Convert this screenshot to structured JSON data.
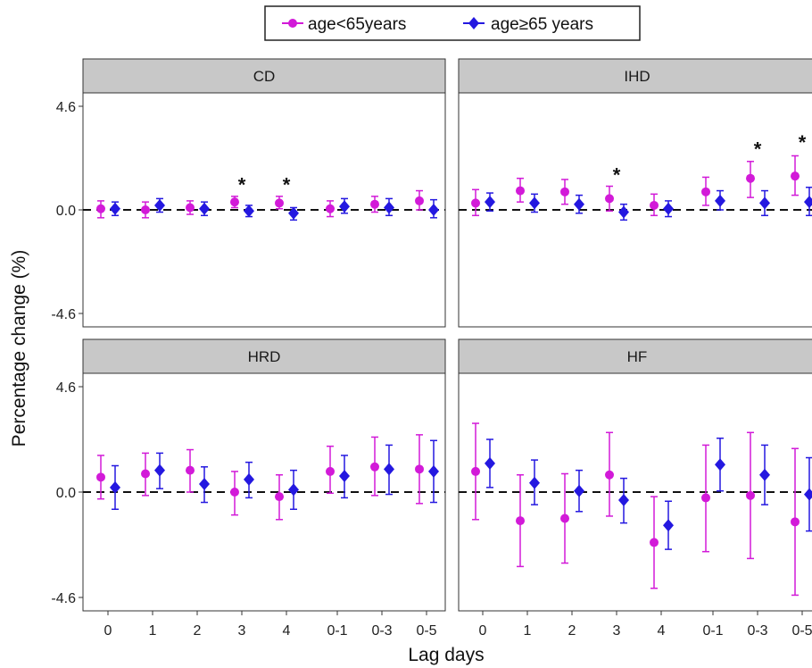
{
  "chart_data": {
    "type": "scatter",
    "xlabel": "Lag days",
    "ylabel": "Percentage change (%)",
    "categories": [
      "0",
      "1",
      "2",
      "3",
      "4",
      "0-1",
      "0-3",
      "0-5"
    ],
    "y_ticks": [
      "4.6",
      "0.0",
      "-4.6"
    ],
    "ylim": [
      -4.6,
      4.6
    ],
    "reference_line": 0,
    "legend": {
      "placement": "top",
      "entries": [
        {
          "name": "age<65years",
          "marker": "circle",
          "color": "#d21ad8"
        },
        {
          "name": "age≥65 years",
          "marker": "diamond",
          "color": "#2418e0"
        }
      ]
    },
    "panels": [
      {
        "title": "CD",
        "series": [
          {
            "name": "age<65years",
            "values": [
              0.05,
              0.0,
              0.1,
              0.35,
              0.3,
              0.05,
              0.25,
              0.4
            ],
            "lower": [
              -0.35,
              -0.35,
              -0.2,
              0.1,
              0.05,
              -0.3,
              -0.1,
              0.0
            ],
            "upper": [
              0.4,
              0.35,
              0.4,
              0.6,
              0.6,
              0.4,
              0.6,
              0.85
            ]
          },
          {
            "name": "age≥65 years",
            "values": [
              0.05,
              0.2,
              0.05,
              -0.05,
              -0.15,
              0.15,
              0.1,
              0.0
            ],
            "lower": [
              -0.25,
              -0.1,
              -0.25,
              -0.3,
              -0.45,
              -0.15,
              -0.25,
              -0.35
            ],
            "upper": [
              0.35,
              0.5,
              0.35,
              0.2,
              0.1,
              0.5,
              0.5,
              0.45
            ]
          }
        ],
        "annotations": [
          {
            "category": "3",
            "y": 1.2,
            "text": "*"
          },
          {
            "category": "4",
            "y": 1.2,
            "text": "*"
          }
        ]
      },
      {
        "title": "IHD",
        "series": [
          {
            "name": "age<65years",
            "values": [
              0.3,
              0.85,
              0.8,
              0.5,
              0.2,
              0.8,
              1.4,
              1.5
            ],
            "lower": [
              -0.25,
              0.35,
              0.25,
              -0.05,
              -0.25,
              0.2,
              0.55,
              0.65
            ],
            "upper": [
              0.9,
              1.4,
              1.35,
              1.05,
              0.7,
              1.45,
              2.15,
              2.4
            ]
          },
          {
            "name": "age≥65 years",
            "values": [
              0.35,
              0.3,
              0.25,
              -0.1,
              0.05,
              0.4,
              0.3,
              0.35
            ],
            "lower": [
              -0.05,
              -0.1,
              -0.15,
              -0.45,
              -0.3,
              0.0,
              -0.25,
              -0.25
            ],
            "upper": [
              0.75,
              0.7,
              0.65,
              0.25,
              0.4,
              0.85,
              0.85,
              1.0
            ]
          }
        ],
        "annotations": [
          {
            "category": "3",
            "y": 1.65,
            "text": "*"
          },
          {
            "category": "0-3",
            "y": 2.8,
            "text": "*"
          },
          {
            "category": "0-5",
            "y": 3.1,
            "text": "*"
          }
        ]
      },
      {
        "title": "HRD",
        "series": [
          {
            "name": "age<65years",
            "values": [
              0.65,
              0.8,
              0.95,
              0.0,
              -0.2,
              0.9,
              1.1,
              1.0
            ],
            "lower": [
              -0.3,
              -0.15,
              0.0,
              -1.0,
              -1.2,
              -0.05,
              -0.15,
              -0.5
            ],
            "upper": [
              1.6,
              1.7,
              1.85,
              0.9,
              0.75,
              2.0,
              2.4,
              2.5
            ]
          },
          {
            "name": "age≥65 years",
            "values": [
              0.2,
              0.95,
              0.35,
              0.55,
              0.1,
              0.7,
              1.0,
              0.9
            ],
            "lower": [
              -0.75,
              0.15,
              -0.45,
              -0.25,
              -0.75,
              -0.25,
              -0.1,
              -0.45
            ],
            "upper": [
              1.15,
              1.7,
              1.1,
              1.3,
              0.95,
              1.6,
              2.05,
              2.25
            ]
          }
        ],
        "annotations": []
      },
      {
        "title": "HF",
        "series": [
          {
            "name": "age<65years",
            "values": [
              0.9,
              -1.25,
              -1.15,
              0.75,
              -2.2,
              -0.25,
              -0.15,
              -1.3
            ],
            "lower": [
              -1.2,
              -3.25,
              -3.1,
              -1.05,
              -4.2,
              -2.6,
              -2.9,
              -4.5
            ],
            "upper": [
              3.0,
              0.75,
              0.8,
              2.6,
              -0.2,
              2.05,
              2.6,
              1.9
            ]
          },
          {
            "name": "age≥65 years",
            "values": [
              1.25,
              0.4,
              0.05,
              -0.35,
              -1.45,
              1.2,
              0.75,
              -0.1
            ],
            "lower": [
              0.2,
              -0.55,
              -0.85,
              -1.35,
              -2.5,
              0.05,
              -0.55,
              -1.7
            ],
            "upper": [
              2.3,
              1.4,
              0.95,
              0.6,
              -0.4,
              2.35,
              2.05,
              1.5
            ]
          }
        ],
        "annotations": []
      }
    ]
  }
}
